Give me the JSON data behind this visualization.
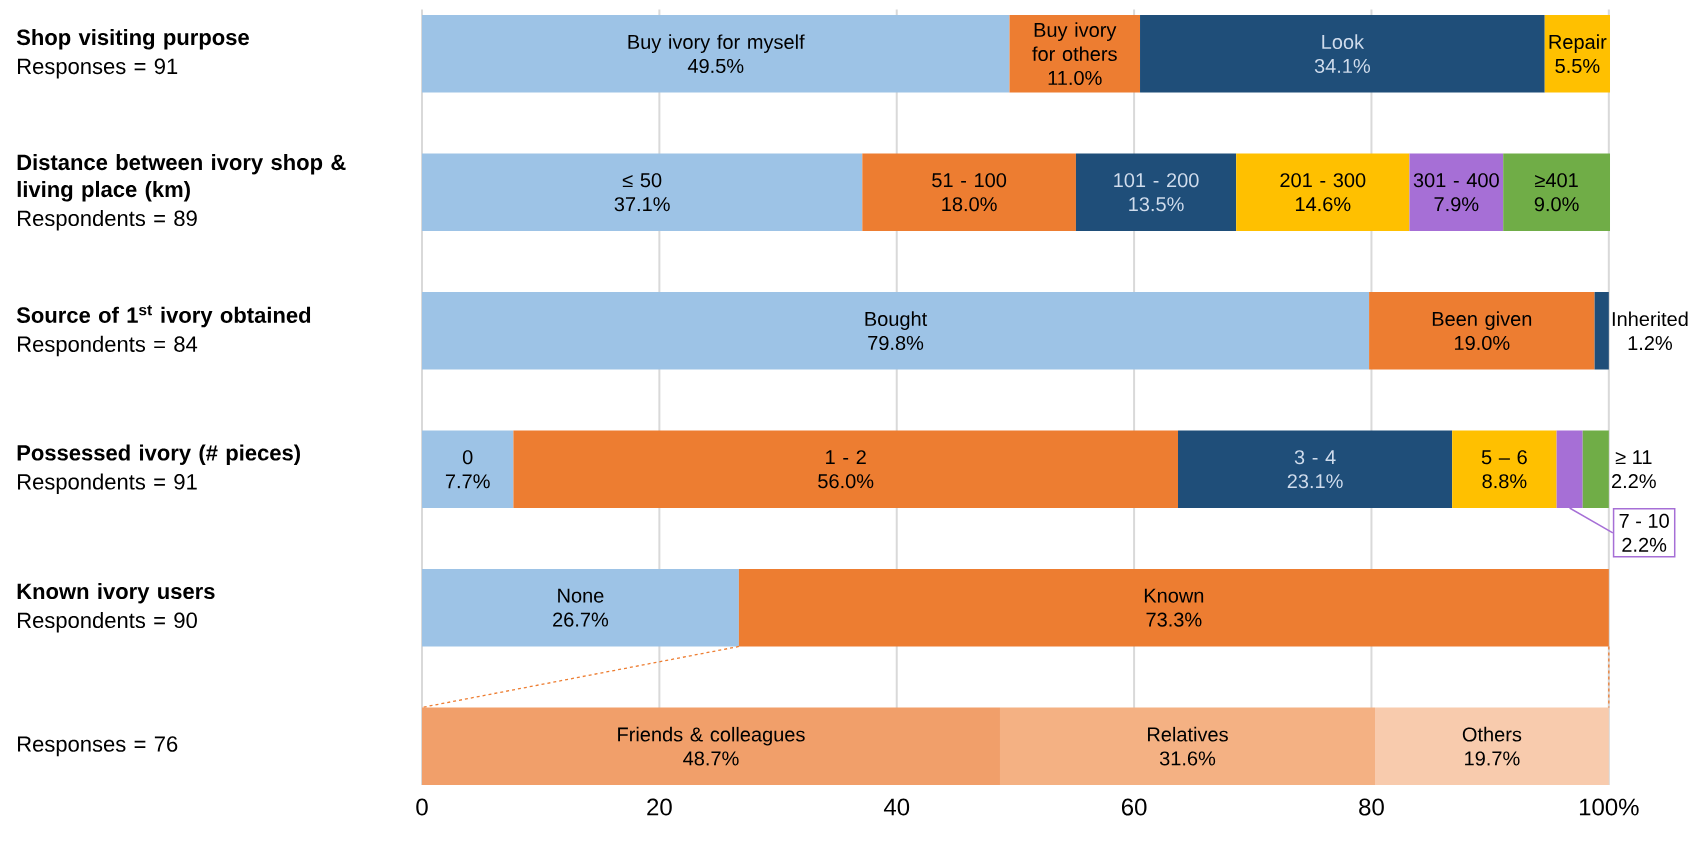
{
  "chart_data": {
    "type": "bar",
    "orientation": "horizontal",
    "stacked": true,
    "grid": "x",
    "categories": [
      "Shop visiting purpose",
      "Distance between ivory shop & living place (km)",
      "Source of 1$^{st}$ ivory obtained",
      "Possessed ivory (# pieces)",
      "Known ivory users",
      null
    ],
    "annotations": [
      "Responses = 91",
      "Respondents = 89",
      "Respondents = 84",
      "Respondents = 91",
      "Respondents = 90",
      "Responses = 76"
    ],
    "xlim": [
      0,
      100.1
    ],
    "xticks": [
      0,
      20,
      40,
      60,
      80,
      {
        "value": 100,
        "label": "100%"
      }
    ],
    "series": [
      {
        "name": "Buy ivory for myself",
        "color": "#9dc3e6",
        "values": [
          49.5,
          null,
          null,
          null,
          null,
          null
        ],
        "value_labels": [
          "49.5%",
          null,
          null,
          null,
          null,
          null
        ]
      },
      {
        "name": "Buy ivory for others",
        "color": "#ed7d31",
        "values": [
          11.0,
          null,
          null,
          null,
          null,
          null
        ],
        "value_labels": [
          "11.0%",
          null,
          null,
          null,
          null,
          null
        ]
      },
      {
        "name": "Look",
        "color": "#1f4e79",
        "values": [
          34.1,
          null,
          null,
          null,
          null,
          null
        ],
        "value_labels": [
          "34.1%",
          null,
          null,
          null,
          null,
          null
        ]
      },
      {
        "name": "Repair",
        "color": "#ffc000",
        "values": [
          5.5,
          null,
          null,
          null,
          null,
          null
        ],
        "value_labels": [
          "5.5%",
          null,
          null,
          null,
          null,
          null
        ]
      },
      {
        "name": "≤ 50",
        "color": "#9dc3e6",
        "values": [
          null,
          37.1,
          null,
          null,
          null,
          null
        ],
        "value_labels": [
          null,
          "37.1%",
          null,
          null,
          null,
          null
        ]
      },
      {
        "name": "51 - 100",
        "color": "#ed7d31",
        "values": [
          null,
          18.0,
          null,
          null,
          null,
          null
        ],
        "value_labels": [
          null,
          "18.0%",
          null,
          null,
          null,
          null
        ]
      },
      {
        "name": "101 - 200",
        "color": "#1f4e79",
        "values": [
          null,
          13.5,
          null,
          null,
          null,
          null
        ],
        "value_labels": [
          null,
          "13.5%",
          null,
          null,
          null,
          null
        ]
      },
      {
        "name": "201 - 300",
        "color": "#ffc000",
        "values": [
          null,
          14.6,
          null,
          null,
          null,
          null
        ],
        "value_labels": [
          null,
          "14.6%",
          null,
          null,
          null,
          null
        ]
      },
      {
        "name": "301 - 400",
        "color": "#a66fd6",
        "values": [
          null,
          7.9,
          null,
          null,
          null,
          null
        ],
        "value_labels": [
          null,
          "7.9%",
          null,
          null,
          null,
          null
        ]
      },
      {
        "name": "≥401",
        "color": "#70ad47",
        "values": [
          null,
          9.0,
          null,
          null,
          null,
          null
        ],
        "value_labels": [
          null,
          "9.0%",
          null,
          null,
          null,
          null
        ]
      },
      {
        "name": "Bought",
        "color": "#9dc3e6",
        "values": [
          null,
          null,
          79.8,
          null,
          null,
          null
        ],
        "value_labels": [
          null,
          null,
          "79.8%",
          null,
          null,
          null
        ]
      },
      {
        "name": "Been given",
        "color": "#ed7d31",
        "values": [
          null,
          null,
          19.0,
          null,
          null,
          null
        ],
        "value_labels": [
          null,
          null,
          "19.0%",
          null,
          null,
          null
        ]
      },
      {
        "name": "Inherited",
        "color": "#1f4e79",
        "values": [
          null,
          null,
          1.2,
          null,
          null,
          null
        ],
        "value_labels": [
          null,
          null,
          "1.2%",
          null,
          null,
          null
        ]
      },
      {
        "name": "0",
        "color": "#9dc3e6",
        "values": [
          null,
          null,
          null,
          7.7,
          null,
          null
        ],
        "value_labels": [
          null,
          null,
          null,
          "7.7%",
          null,
          null
        ]
      },
      {
        "name": "1 - 2",
        "color": "#ed7d31",
        "values": [
          null,
          null,
          null,
          56.0,
          null,
          null
        ],
        "value_labels": [
          null,
          null,
          null,
          "56.0%",
          null,
          null
        ]
      },
      {
        "name": "3 - 4",
        "color": "#1f4e79",
        "values": [
          null,
          null,
          null,
          23.1,
          null,
          null
        ],
        "value_labels": [
          null,
          null,
          null,
          "23.1%",
          null,
          null
        ]
      },
      {
        "name": "5 – 6",
        "color": "#ffc000",
        "values": [
          null,
          null,
          null,
          8.8,
          null,
          null
        ],
        "value_labels": [
          null,
          null,
          null,
          "8.8%",
          null,
          null
        ]
      },
      {
        "name": "7 - 10",
        "color": "#a66fd6",
        "values": [
          null,
          null,
          null,
          2.2,
          null,
          null
        ],
        "value_labels": [
          null,
          null,
          null,
          "2.2%",
          null,
          null
        ]
      },
      {
        "name": "≥ 11",
        "color": "#70ad47",
        "values": [
          null,
          null,
          null,
          2.2,
          null,
          null
        ],
        "value_labels": [
          null,
          null,
          null,
          "2.2%",
          null,
          null
        ]
      },
      {
        "name": "None",
        "color": "#9dc3e6",
        "values": [
          null,
          null,
          null,
          null,
          26.7,
          null
        ],
        "value_labels": [
          null,
          null,
          null,
          null,
          "26.7%",
          null
        ]
      },
      {
        "name": "Known",
        "color": "#ed7d31",
        "values": [
          null,
          null,
          null,
          null,
          73.3,
          null
        ],
        "value_labels": [
          null,
          null,
          null,
          null,
          "73.3%",
          null
        ]
      },
      {
        "name": "Friends & colleagues",
        "color": "#f19f6a",
        "values": [
          null,
          null,
          null,
          null,
          null,
          48.7
        ],
        "value_labels": [
          null,
          null,
          null,
          null,
          null,
          "48.7%"
        ]
      },
      {
        "name": "Relatives",
        "color": "#f4b183",
        "values": [
          null,
          null,
          null,
          null,
          null,
          31.6
        ],
        "value_labels": [
          null,
          null,
          null,
          null,
          null,
          "31.6%"
        ]
      },
      {
        "name": "Others",
        "color": "#f8cbad",
        "values": [
          null,
          null,
          null,
          null,
          null,
          19.7
        ],
        "value_labels": [
          null,
          null,
          null,
          null,
          null,
          "19.7%"
        ]
      }
    ]
  }
}
